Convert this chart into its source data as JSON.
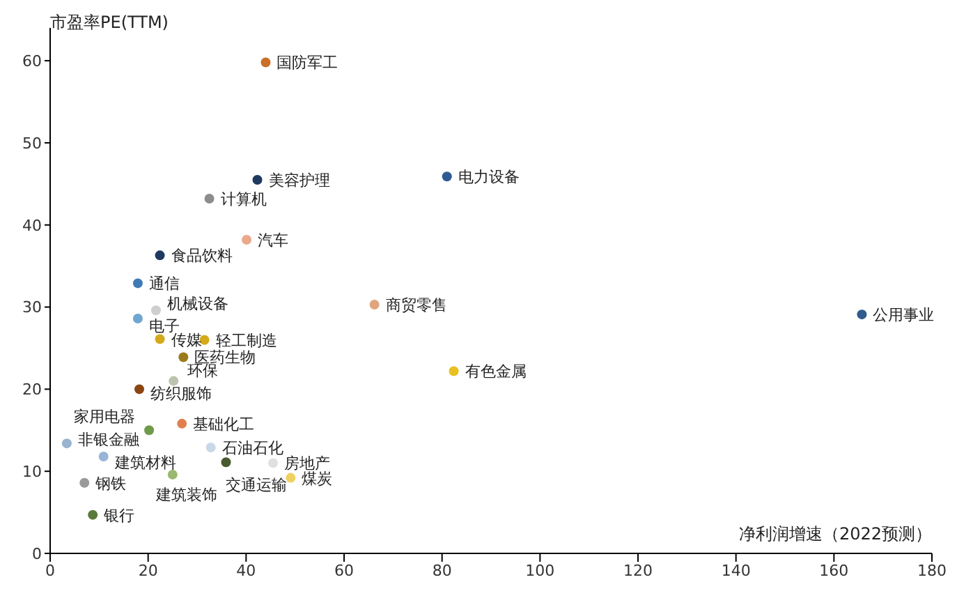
{
  "chart_data": {
    "type": "scatter",
    "ylabel": "市盈率PE(TTM)",
    "xlabel": "净利润增速（2022预测）",
    "x": [
      44.0,
      42.3,
      81.0,
      32.5,
      40.1,
      22.4,
      17.9,
      21.6,
      66.2,
      165.7,
      17.9,
      22.4,
      31.5,
      27.2,
      25.2,
      18.2,
      20.2,
      26.9,
      3.4,
      32.8,
      10.9,
      35.9,
      45.5,
      49.1,
      25.0,
      7.0,
      8.7,
      82.4
    ],
    "values": [
      59.8,
      45.5,
      45.9,
      43.2,
      38.2,
      36.3,
      32.9,
      29.6,
      30.3,
      29.1,
      28.6,
      26.1,
      26.0,
      23.9,
      21.0,
      20.0,
      15.0,
      15.8,
      13.4,
      12.9,
      11.8,
      11.1,
      11.0,
      9.2,
      9.6,
      8.6,
      4.7,
      22.2
    ],
    "colors": [
      "#c8702a",
      "#1f3a5f",
      "#2f5b95",
      "#8c8c8c",
      "#eaa98a",
      "#1f3a5f",
      "#3f7ab5",
      "#cfcfcf",
      "#e0a57e",
      "#2f5b8f",
      "#6fa6cf",
      "#d4aa1a",
      "#d4aa1a",
      "#9a7a1a",
      "#bcc4b0",
      "#8a4512",
      "#6f9a4a",
      "#e08050",
      "#98b4cf",
      "#c8d8e8",
      "#98b4d8",
      "#4a5a30",
      "#e0e0e0",
      "#f0d060",
      "#9ab870",
      "#9a9a9a",
      "#5a7a3a",
      "#e8c020"
    ],
    "annotations": [
      {
        "text": "国防军工",
        "x": 44.0,
        "y": 59.8
      },
      {
        "text": "美容护理",
        "x": 42.3,
        "y": 45.5
      },
      {
        "text": "电力设备",
        "x": 81.0,
        "y": 45.9
      },
      {
        "text": "计算机",
        "x": 32.5,
        "y": 43.2
      },
      {
        "text": "汽车",
        "x": 40.1,
        "y": 38.2
      },
      {
        "text": "食品饮料",
        "x": 22.4,
        "y": 36.3
      },
      {
        "text": "通信",
        "x": 17.9,
        "y": 32.9
      },
      {
        "text": "机械设备",
        "x": 21.6,
        "y": 29.6
      },
      {
        "text": "商贸零售",
        "x": 66.2,
        "y": 30.3
      },
      {
        "text": "公用事业",
        "x": 165.7,
        "y": 29.1
      },
      {
        "text": "电子",
        "x": 17.9,
        "y": 28.6
      },
      {
        "text": "传媒",
        "x": 22.4,
        "y": 26.1
      },
      {
        "text": "轻工制造",
        "x": 31.5,
        "y": 26.0
      },
      {
        "text": "医药生物",
        "x": 27.2,
        "y": 23.9
      },
      {
        "text": "环保",
        "x": 25.2,
        "y": 21.0
      },
      {
        "text": "纺织服饰",
        "x": 18.2,
        "y": 20.0
      },
      {
        "text": "家用电器",
        "x": 20.2,
        "y": 15.0
      },
      {
        "text": "基础化工",
        "x": 26.9,
        "y": 15.8
      },
      {
        "text": "非银金融",
        "x": 3.4,
        "y": 13.4
      },
      {
        "text": "石油石化",
        "x": 32.8,
        "y": 12.9
      },
      {
        "text": "建筑材料",
        "x": 10.9,
        "y": 11.8
      },
      {
        "text": "交通运输",
        "x": 35.9,
        "y": 11.1
      },
      {
        "text": "房地产",
        "x": 45.5,
        "y": 11.0
      },
      {
        "text": "煤炭",
        "x": 49.1,
        "y": 9.2
      },
      {
        "text": "建筑装饰",
        "x": 25.0,
        "y": 9.6
      },
      {
        "text": "钢铁",
        "x": 7.0,
        "y": 8.6
      },
      {
        "text": "银行",
        "x": 8.7,
        "y": 4.7
      },
      {
        "text": "有色金属",
        "x": 82.4,
        "y": 22.2
      }
    ],
    "xlim": [
      0,
      180
    ],
    "xticks": [
      0,
      20,
      40,
      60,
      80,
      100,
      120,
      140,
      160,
      180
    ],
    "ylim": [
      0,
      64
    ],
    "yticks": [
      0,
      10,
      20,
      30,
      40,
      50,
      60
    ],
    "grid": false,
    "marker": "circle"
  }
}
